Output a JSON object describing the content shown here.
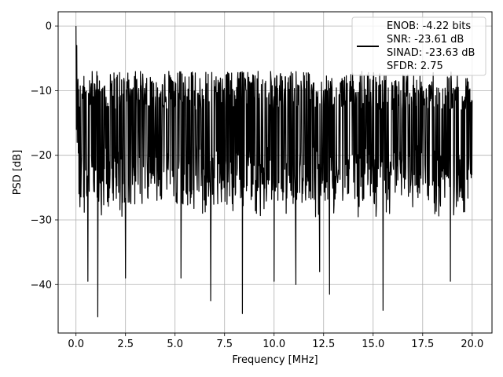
{
  "chart_data": {
    "type": "line",
    "title": "",
    "xlabel": "Frequency [MHz]",
    "ylabel": "PSD [dB]",
    "xlim": [
      -0.9,
      21.0
    ],
    "ylim": [
      -47.5,
      2.2
    ],
    "xticks": [
      0.0,
      2.5,
      5.0,
      7.5,
      10.0,
      12.5,
      15.0,
      17.5,
      20.0
    ],
    "xtick_labels": [
      "0.0",
      "2.5",
      "5.0",
      "7.5",
      "10.0",
      "12.5",
      "15.0",
      "17.5",
      "20.0"
    ],
    "yticks": [
      0,
      -10,
      -20,
      -30,
      -40
    ],
    "ytick_labels": [
      "0",
      "−10",
      "−20",
      "−30",
      "−40"
    ],
    "grid": true,
    "legend": {
      "placement": "top-right",
      "entries": [
        "ENOB: -4.22 bits",
        "SNR: -23.61 dB",
        "SINAD: -23.63 dB",
        "SFDR: 2.75"
      ]
    },
    "series": [
      {
        "color": "#000000",
        "x_start": 0.0,
        "x_end": 20.0,
        "points_count": 1200,
        "peak": {
          "x": 0.0,
          "y": 0.0
        },
        "envelope_upper_approx": -7,
        "envelope_lower_approx": -30,
        "deep_notches": [
          {
            "x": 0.6,
            "y": -39.5
          },
          {
            "x": 1.1,
            "y": -45.0
          },
          {
            "x": 2.5,
            "y": -39.0
          },
          {
            "x": 5.3,
            "y": -39.0
          },
          {
            "x": 6.8,
            "y": -42.5
          },
          {
            "x": 8.4,
            "y": -44.5
          },
          {
            "x": 10.0,
            "y": -39.5
          },
          {
            "x": 11.1,
            "y": -40.0
          },
          {
            "x": 12.3,
            "y": -38.0
          },
          {
            "x": 12.8,
            "y": -41.5
          },
          {
            "x": 15.5,
            "y": -44.0
          },
          {
            "x": 18.9,
            "y": -39.5
          }
        ]
      }
    ]
  }
}
